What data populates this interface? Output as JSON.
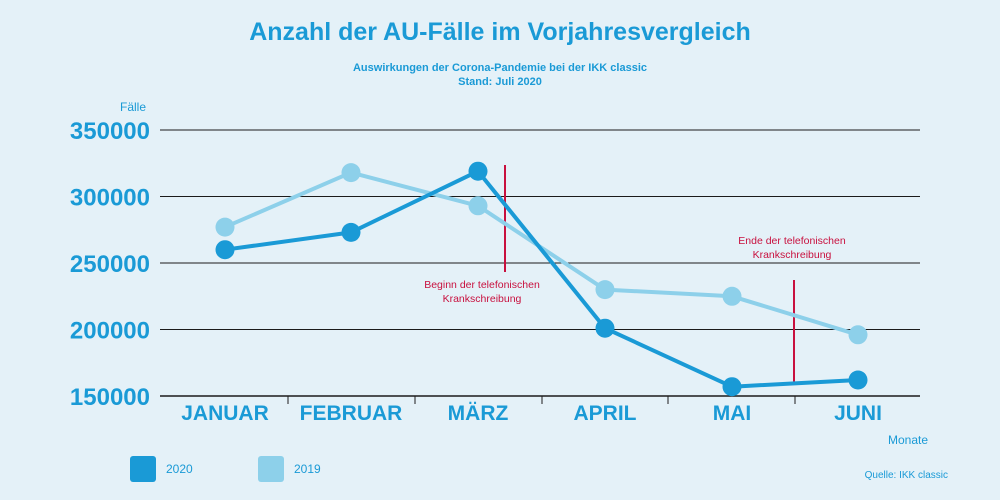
{
  "chart_data": {
    "type": "line",
    "title": "Anzahl der AU-Fälle im Vorjahresvergleich",
    "subtitle": "Auswirkungen der Corona-Pandemie bei der IKK classic",
    "subtitle2": "Stand: Juli 2020",
    "ylabel": "Fälle",
    "xlabel": "Monate",
    "categories": [
      "JANUAR",
      "FEBRUAR",
      "MÄRZ",
      "APRIL",
      "MAI",
      "JUNI"
    ],
    "ylim": [
      150000,
      350000
    ],
    "yticks": [
      "150000",
      "200000",
      "250000",
      "300000",
      "350000"
    ],
    "grid": true,
    "legend_position": "bottom-left",
    "series": [
      {
        "name": "2020",
        "color": "#1a9ad6",
        "values": [
          260000,
          273000,
          319000,
          201000,
          157000,
          162000
        ]
      },
      {
        "name": "2019",
        "color": "#8dd0ea",
        "values": [
          277000,
          318000,
          293000,
          230000,
          225000,
          196000
        ]
      }
    ],
    "annotations": [
      {
        "text_line1": "Beginn der telefonischen",
        "text_line2": "Krankschreibung",
        "color": "#c8103e"
      },
      {
        "text_line1": "Ende der telefonischen",
        "text_line2": "Krankschreibung",
        "color": "#c8103e"
      }
    ],
    "source": "Quelle: IKK classic"
  }
}
